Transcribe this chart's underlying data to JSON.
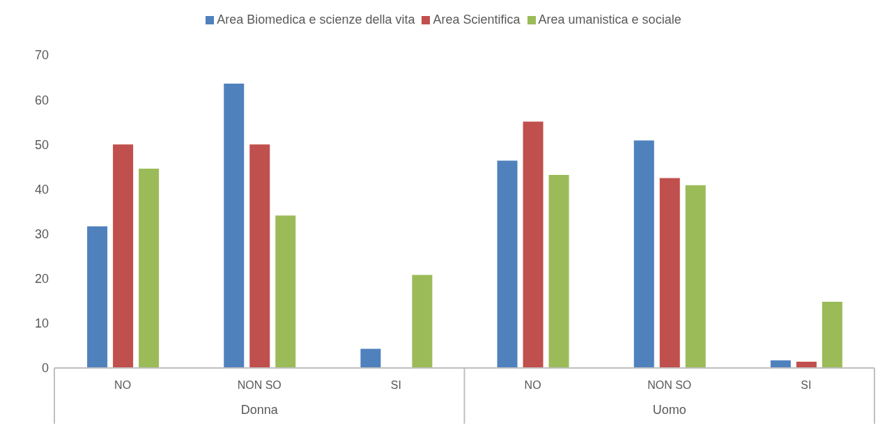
{
  "chart_data": {
    "type": "bar",
    "categories": [
      "NO",
      "NON SO",
      "SI",
      "NO",
      "NON SO",
      "SI"
    ],
    "series": [
      {
        "name": "Area Biomedica e scienze della vita",
        "color": "#4f81bd",
        "values": [
          31.7,
          63.6,
          4.3,
          46.4,
          50.9,
          1.7
        ]
      },
      {
        "name": "Area Scientifica",
        "color": "#c0504d",
        "values": [
          50,
          50,
          0,
          55.1,
          42.5,
          1.4
        ]
      },
      {
        "name": "Area umanistica e sociale",
        "color": "#9bbb59",
        "values": [
          44.6,
          34.1,
          20.8,
          43.2,
          40.9,
          14.8
        ]
      }
    ],
    "ylim": [
      0,
      70
    ],
    "yticks": [
      0,
      10,
      20,
      30,
      40,
      50,
      60,
      70
    ],
    "grid": false,
    "legend": "top",
    "annotations": [
      "Donna",
      "Uomo"
    ]
  }
}
